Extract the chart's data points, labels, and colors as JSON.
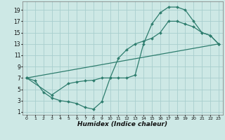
{
  "xlabel": "Humidex (Indice chaleur)",
  "bg_color": "#cde8e5",
  "grid_color": "#a8cece",
  "line_color": "#2e7d6e",
  "xlim": [
    -0.5,
    23.5
  ],
  "ylim": [
    0.5,
    20.5
  ],
  "xticks": [
    0,
    1,
    2,
    3,
    4,
    5,
    6,
    7,
    8,
    9,
    10,
    11,
    12,
    13,
    14,
    15,
    16,
    17,
    18,
    19,
    20,
    21,
    22,
    23
  ],
  "yticks": [
    1,
    3,
    5,
    7,
    9,
    11,
    13,
    15,
    17,
    19
  ],
  "line1_x": [
    0,
    1,
    2,
    3,
    4,
    5,
    6,
    7,
    8,
    9,
    10,
    11,
    12,
    13,
    14,
    15,
    16,
    17,
    18,
    19,
    20,
    21,
    22,
    23
  ],
  "line1_y": [
    7,
    6.5,
    4.5,
    3.5,
    3.0,
    2.8,
    2.5,
    1.8,
    1.5,
    2.8,
    7,
    7,
    7,
    7.5,
    13,
    16.5,
    18.5,
    19.5,
    19.5,
    19,
    17,
    15,
    14.5,
    13
  ],
  "line2_x": [
    0,
    3,
    5,
    6,
    7,
    8,
    9,
    10,
    11,
    12,
    13,
    14,
    15,
    16,
    17,
    18,
    19,
    20,
    21,
    22,
    23
  ],
  "line2_y": [
    7,
    4.0,
    6.0,
    6.3,
    6.5,
    6.6,
    7,
    7,
    10.5,
    12,
    13,
    13.5,
    14,
    15,
    17,
    17,
    16.5,
    16,
    15,
    14.5,
    13
  ],
  "line3_x": [
    0,
    23
  ],
  "line3_y": [
    7,
    13
  ]
}
